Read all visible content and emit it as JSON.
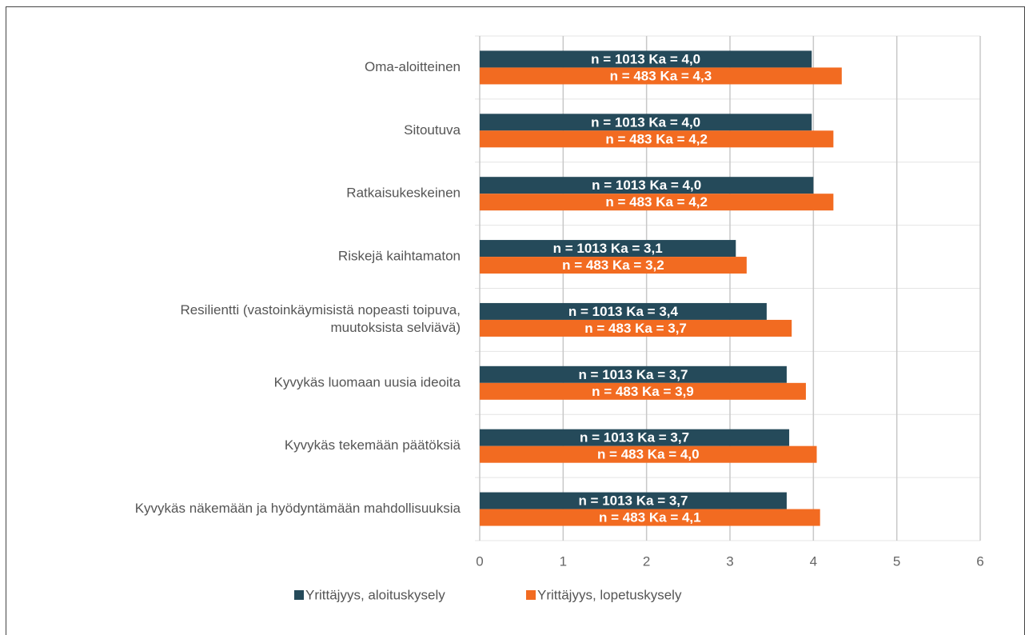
{
  "chart_data": {
    "type": "hbar",
    "categories": [
      "Oma-aloitteinen",
      "Sitoutuva",
      "Ratkaisukeskeinen",
      "Riskejä kaihtamaton",
      "Resilientti (vastoinkäymisistä nopeasti toipuva, muutoksista selviävä)",
      "Kyvykäs luomaan uusia ideoita",
      "Kyvykäs tekemään päätöksiä",
      "Kyvykäs näkemään ja hyödyntämään mahdollisuuksia"
    ],
    "series": [
      {
        "name": "Yrittäjyys, aloituskysely",
        "color": "#254a5a",
        "values": [
          3.98,
          3.98,
          4.0,
          3.07,
          3.44,
          3.68,
          3.71,
          3.68
        ],
        "value_labels": [
          "n = 1013 Ka = 4,0",
          "n = 1013 Ka = 4,0",
          "n = 1013 Ka = 4,0",
          "n = 1013 Ka = 3,1",
          "n = 1013 Ka = 3,4",
          "n = 1013 Ka = 3,7",
          "n = 1013 Ka = 3,7",
          "n = 1013 Ka = 3,7"
        ]
      },
      {
        "name": "Yrittäjyys, lopetuskysely",
        "color": "#f26b21",
        "values": [
          4.34,
          4.24,
          4.24,
          3.2,
          3.74,
          3.91,
          4.04,
          4.08
        ],
        "value_labels": [
          "n = 483 Ka = 4,3",
          "n = 483 Ka = 4,2",
          "n = 483 Ka = 4,2",
          "n = 483 Ka = 3,2",
          "n = 483 Ka = 3,7",
          "n = 483 Ka = 3,9",
          "n = 483 Ka = 4,0",
          "n = 483 Ka = 4,1"
        ]
      }
    ],
    "xlim": [
      0,
      6
    ],
    "xticks": [
      0,
      1,
      2,
      3,
      4,
      5,
      6
    ],
    "grid": true,
    "legend": "bottom"
  }
}
